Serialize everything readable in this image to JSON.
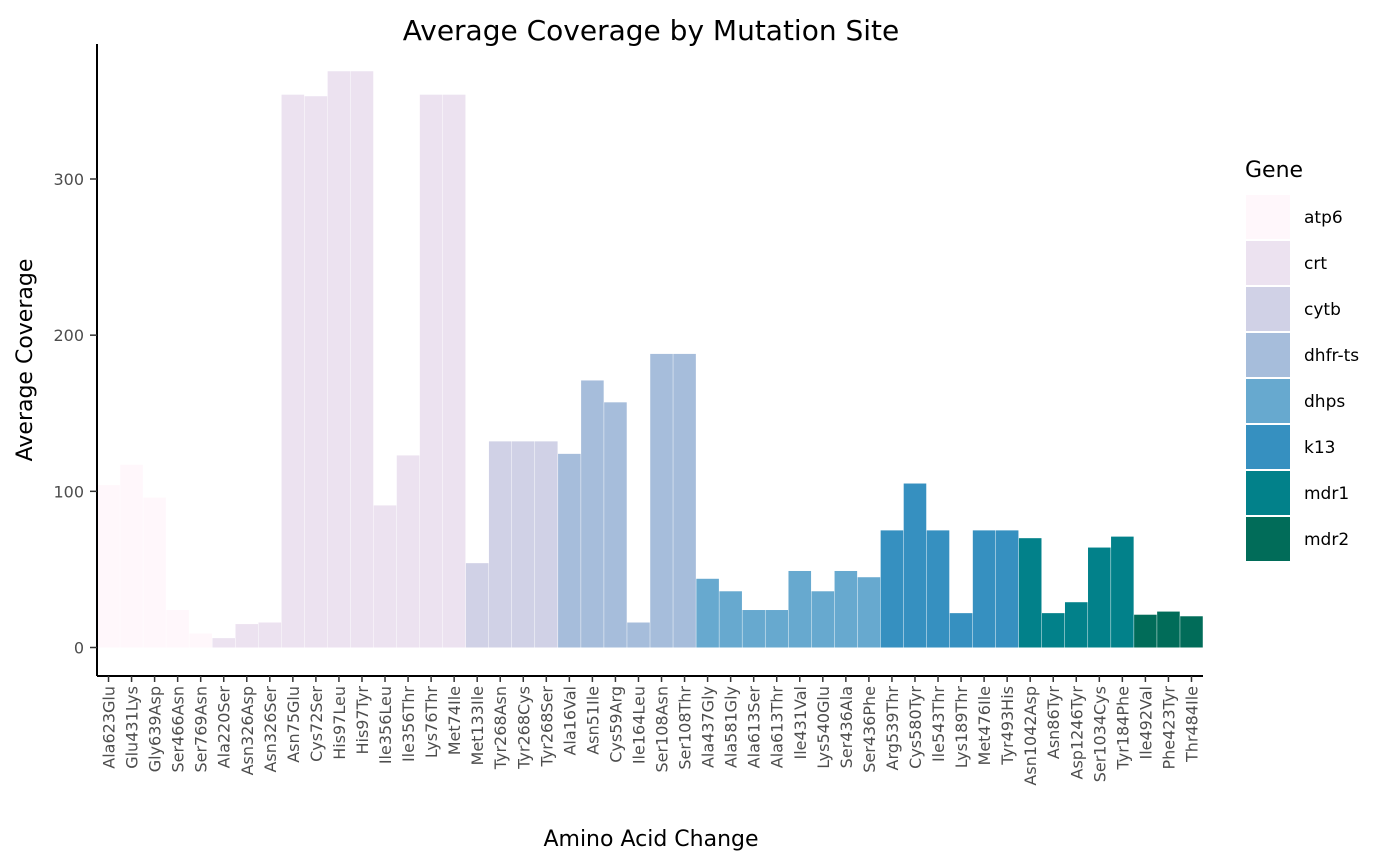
{
  "chart_data": {
    "type": "bar",
    "title": "Average Coverage by Mutation Site",
    "xlabel": "Amino Acid Change",
    "ylabel": "Average Coverage",
    "ylim": [
      0,
      370
    ],
    "yticks": [
      0,
      100,
      200,
      300
    ],
    "grid": false,
    "legend": {
      "title": "Gene",
      "placement": "right"
    },
    "genes": [
      {
        "name": "atp6",
        "color": "#fff7fb"
      },
      {
        "name": "crt",
        "color": "#ece2f0"
      },
      {
        "name": "cytb",
        "color": "#d0d1e6"
      },
      {
        "name": "dhfr-ts",
        "color": "#a6bddb"
      },
      {
        "name": "dhps",
        "color": "#67a9cf"
      },
      {
        "name": "k13",
        "color": "#3690c0"
      },
      {
        "name": "mdr1",
        "color": "#02818a"
      },
      {
        "name": "mdr2",
        "color": "#016c59"
      }
    ],
    "categories": [
      "Ala623Glu",
      "Glu431Lys",
      "Gly639Asp",
      "Ser466Asn",
      "Ser769Asn",
      "Ala220Ser",
      "Asn326Asp",
      "Asn326Ser",
      "Asn75Glu",
      "Cys72Ser",
      "His97Leu",
      "His97Tyr",
      "Ile356Leu",
      "Ile356Thr",
      "Lys76Thr",
      "Met74Ile",
      "Met133Ile",
      "Tyr268Asn",
      "Tyr268Cys",
      "Tyr268Ser",
      "Ala16Val",
      "Asn51Ile",
      "Cys59Arg",
      "Ile164Leu",
      "Ser108Asn",
      "Ser108Thr",
      "Ala437Gly",
      "Ala581Gly",
      "Ala613Ser",
      "Ala613Thr",
      "Ile431Val",
      "Lys540Glu",
      "Ser436Ala",
      "Ser436Phe",
      "Arg539Thr",
      "Cys580Tyr",
      "Ile543Thr",
      "Lys189Thr",
      "Met476Ile",
      "Tyr493His",
      "Asn1042Asp",
      "Asn86Tyr",
      "Asp1246Tyr",
      "Ser1034Cys",
      "Tyr184Phe",
      "Ile492Val",
      "Phe423Tyr",
      "Thr484Ile"
    ],
    "gene_of_category": [
      "atp6",
      "atp6",
      "atp6",
      "atp6",
      "atp6",
      "crt",
      "crt",
      "crt",
      "crt",
      "crt",
      "crt",
      "crt",
      "crt",
      "crt",
      "crt",
      "crt",
      "cytb",
      "cytb",
      "cytb",
      "cytb",
      "dhfr-ts",
      "dhfr-ts",
      "dhfr-ts",
      "dhfr-ts",
      "dhfr-ts",
      "dhfr-ts",
      "dhps",
      "dhps",
      "dhps",
      "dhps",
      "dhps",
      "dhps",
      "dhps",
      "dhps",
      "k13",
      "k13",
      "k13",
      "k13",
      "k13",
      "k13",
      "mdr1",
      "mdr1",
      "mdr1",
      "mdr1",
      "mdr1",
      "mdr2",
      "mdr2",
      "mdr2"
    ],
    "values": [
      104,
      117,
      96,
      24,
      9,
      6,
      15,
      16,
      354,
      353,
      369,
      369,
      91,
      123,
      354,
      354,
      54,
      132,
      132,
      132,
      124,
      171,
      157,
      16,
      188,
      188,
      44,
      36,
      24,
      24,
      49,
      36,
      49,
      45,
      75,
      105,
      75,
      22,
      75,
      75,
      70,
      22,
      29,
      64,
      71,
      21,
      23,
      20
    ]
  }
}
